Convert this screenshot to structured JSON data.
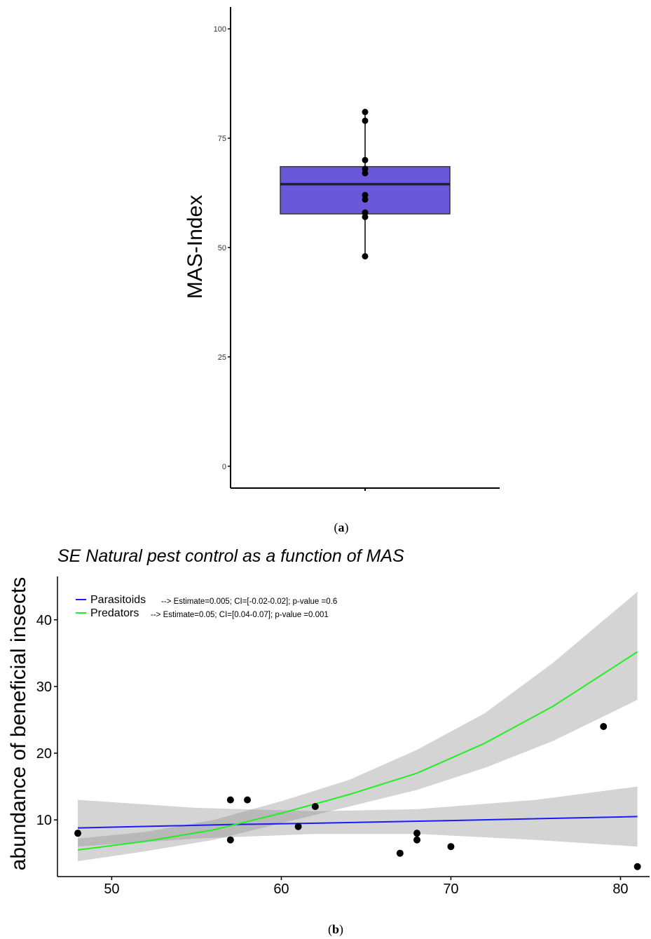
{
  "chart_data": [
    {
      "type": "box",
      "panel_caption_letter": "a",
      "ylabel": "MAS-Index",
      "xlabel": "",
      "ylim": [
        -5,
        105
      ],
      "yticks": [
        0,
        25,
        50,
        75,
        100
      ],
      "box": {
        "q1": 57.7,
        "median": 64.5,
        "q3": 68.5,
        "fill": "#6b57d9",
        "whisker_low": 48,
        "whisker_high": 81
      },
      "points": [
        48,
        57,
        58,
        61,
        62,
        67,
        68,
        70,
        79,
        81
      ]
    },
    {
      "type": "scatter",
      "panel_caption_letter": "b",
      "title": "SE Natural pest control as a function of MAS",
      "ylabel": "abundance of beneficial insects",
      "xlabel": "",
      "xlim": [
        46.8,
        81.8
      ],
      "ylim": [
        1.5,
        46.5
      ],
      "xticks": [
        50,
        60,
        70,
        80
      ],
      "yticks": [
        10,
        20,
        30,
        40
      ],
      "points": [
        {
          "x": 48,
          "y": 8
        },
        {
          "x": 57,
          "y": 13
        },
        {
          "x": 57,
          "y": 7
        },
        {
          "x": 58,
          "y": 13
        },
        {
          "x": 61,
          "y": 9
        },
        {
          "x": 62,
          "y": 12
        },
        {
          "x": 67,
          "y": 5
        },
        {
          "x": 68,
          "y": 8
        },
        {
          "x": 68,
          "y": 7
        },
        {
          "x": 70,
          "y": 6
        },
        {
          "x": 79,
          "y": 24
        },
        {
          "x": 81,
          "y": 3
        }
      ],
      "series": [
        {
          "name": "Parasitoids",
          "color": "#1a1aff",
          "annotation": "--> Estimate=0.005; CI=[-0.02-0.02]; p-value =0.6",
          "fit": [
            [
              48,
              8.8
            ],
            [
              57,
              9.3
            ],
            [
              62,
              9.5
            ],
            [
              70,
              9.9
            ],
            [
              81,
              10.5
            ]
          ],
          "ci_upper": [
            [
              48,
              13
            ],
            [
              55,
              11.8
            ],
            [
              62,
              11.3
            ],
            [
              68,
              11.6
            ],
            [
              75,
              13.0
            ],
            [
              81,
              15.0
            ]
          ],
          "ci_lower": [
            [
              48,
              6.0
            ],
            [
              55,
              7.2
            ],
            [
              62,
              7.9
            ],
            [
              68,
              7.9
            ],
            [
              75,
              7.0
            ],
            [
              81,
              6.0
            ]
          ]
        },
        {
          "name": "Predators",
          "color": "#22ee22",
          "annotation": "--> Estimate=0.05; CI=[0.04-0.07]; p-value =0.001",
          "fit": [
            [
              48,
              5.5
            ],
            [
              52,
              6.8
            ],
            [
              56,
              8.5
            ],
            [
              60,
              11
            ],
            [
              64,
              13.8
            ],
            [
              68,
              17.0
            ],
            [
              72,
              21.5
            ],
            [
              76,
              27
            ],
            [
              81,
              35.2
            ]
          ],
          "ci_upper": [
            [
              48,
              7.2
            ],
            [
              52,
              8.2
            ],
            [
              56,
              10.0
            ],
            [
              60,
              12.8
            ],
            [
              64,
              16.0
            ],
            [
              68,
              20.5
            ],
            [
              72,
              26.0
            ],
            [
              76,
              33.5
            ],
            [
              81,
              44.2
            ]
          ],
          "ci_lower": [
            [
              48,
              3.8
            ],
            [
              52,
              5.3
            ],
            [
              56,
              7.0
            ],
            [
              60,
              9.5
            ],
            [
              64,
              12.0
            ],
            [
              68,
              14.5
            ],
            [
              72,
              17.8
            ],
            [
              76,
              21.8
            ],
            [
              81,
              28.0
            ]
          ]
        }
      ]
    }
  ]
}
